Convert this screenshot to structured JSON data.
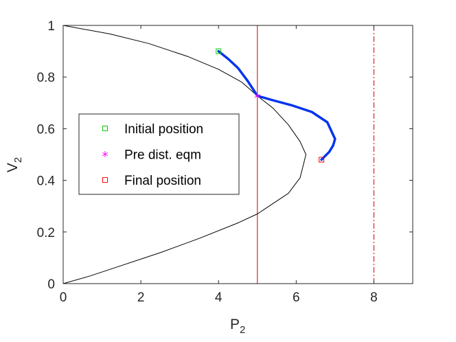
{
  "chart_data": {
    "type": "line",
    "xlabel": {
      "base": "P",
      "sub": "2"
    },
    "ylabel": {
      "base": "V",
      "sub": "2"
    },
    "xlim": [
      0,
      9
    ],
    "ylim": [
      0,
      1
    ],
    "xticks": [
      "0",
      "2",
      "4",
      "6",
      "8"
    ],
    "xtick_values": [
      0,
      2,
      4,
      6,
      8
    ],
    "yticks": [
      "0",
      "0.2",
      "0.4",
      "0.6",
      "0.8",
      "1"
    ],
    "ytick_values": [
      0,
      0.2,
      0.4,
      0.6,
      0.8,
      1
    ],
    "grid": false,
    "legend_position": "center-left",
    "pv_curve": {
      "color": "#000000",
      "points": [
        [
          0,
          1
        ],
        [
          1.2,
          0.967
        ],
        [
          2.2,
          0.93
        ],
        [
          3.2,
          0.88
        ],
        [
          4.0,
          0.83
        ],
        [
          4.6,
          0.78
        ],
        [
          5.0,
          0.727
        ],
        [
          5.4,
          0.68
        ],
        [
          5.8,
          0.615
        ],
        [
          6.1,
          0.55
        ],
        [
          6.25,
          0.5
        ],
        [
          6.1,
          0.41
        ],
        [
          5.8,
          0.35
        ],
        [
          5.4,
          0.31
        ],
        [
          5.0,
          0.27
        ],
        [
          4.5,
          0.235
        ],
        [
          3.5,
          0.175
        ],
        [
          2.5,
          0.12
        ],
        [
          1.5,
          0.07
        ],
        [
          0.7,
          0.03
        ],
        [
          0,
          0
        ]
      ]
    },
    "trajectory": {
      "color": "#0033ee",
      "points": [
        [
          4.0,
          0.9
        ],
        [
          4.25,
          0.87
        ],
        [
          4.5,
          0.835
        ],
        [
          4.75,
          0.785
        ],
        [
          5.0,
          0.727
        ],
        [
          5.4,
          0.71
        ],
        [
          5.9,
          0.69
        ],
        [
          6.4,
          0.665
        ],
        [
          6.8,
          0.625
        ],
        [
          7.0,
          0.56
        ],
        [
          6.95,
          0.535
        ],
        [
          6.85,
          0.51
        ],
        [
          6.65,
          0.48
        ]
      ]
    },
    "vertical_lines": [
      {
        "x": 5,
        "style": "solid",
        "color": "#cc0000"
      },
      {
        "x": 8,
        "style": "dash-dot",
        "color": "#cc0000"
      }
    ],
    "markers": [
      {
        "name": "Initial position",
        "x": 4.0,
        "y": 0.9,
        "shape": "square",
        "color": "#00cc00"
      },
      {
        "name": "Pre dist. eqm",
        "x": 5.0,
        "y": 0.727,
        "shape": "asterisk",
        "color": "#ff00ff"
      },
      {
        "name": "Final position",
        "x": 6.65,
        "y": 0.48,
        "shape": "square",
        "color": "#ff0000"
      }
    ],
    "legend": [
      {
        "label": "Initial position",
        "shape": "square",
        "color": "#00cc00"
      },
      {
        "label": "Pre dist. eqm",
        "shape": "asterisk",
        "color": "#ff00ff"
      },
      {
        "label": "Final position",
        "shape": "square",
        "color": "#ff0000"
      }
    ]
  }
}
